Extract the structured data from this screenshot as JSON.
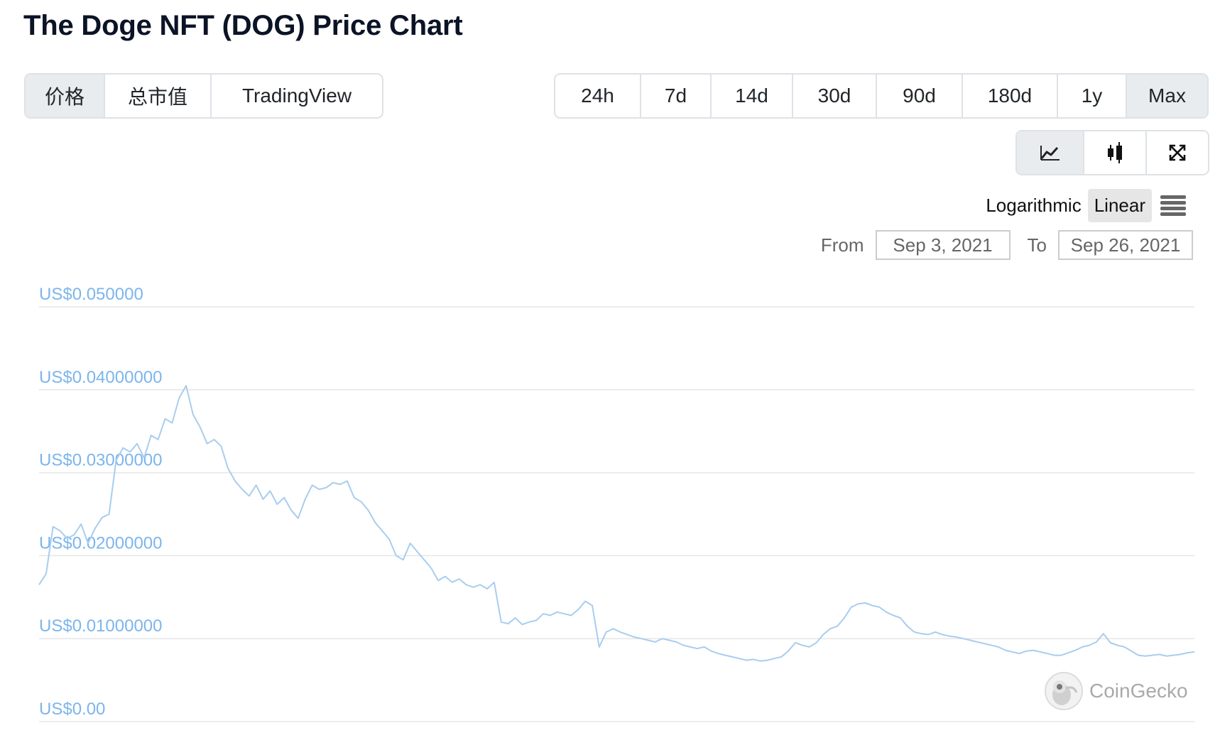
{
  "title": "The Doge NFT (DOG) Price Chart",
  "tabs": [
    "价格",
    "总市值",
    "TradingView"
  ],
  "ranges": [
    "24h",
    "7d",
    "14d",
    "30d",
    "90d",
    "180d",
    "1y",
    "Max"
  ],
  "active_range": "Max",
  "chart_type_icons": [
    "line-chart-icon",
    "candlestick-icon",
    "fullscreen-icon"
  ],
  "scale": {
    "logarithmic": "Logarithmic",
    "linear": "Linear",
    "active": "Linear"
  },
  "range_selector": {
    "from_label": "From",
    "from_value": "Sep 3, 2021",
    "to_label": "To",
    "to_value": "Sep 26, 2021"
  },
  "watermark": "CoinGecko",
  "colors": {
    "line": "#a9cdef",
    "axis_label": "#7cb5ec",
    "grid": "#e6e6e6"
  },
  "chart_data": {
    "type": "line",
    "title": "",
    "xlabel": "",
    "ylabel": "",
    "ylim": [
      0,
      0.05
    ],
    "y_ticks": [
      0,
      0.01,
      0.02,
      0.03,
      0.04,
      0.05
    ],
    "y_tick_labels": [
      "US$0.00",
      "US$0.01000000",
      "US$0.02000000",
      "US$0.03000000",
      "US$0.04000000",
      "US$0.050000"
    ],
    "x_range": [
      "Sep 3, 2021",
      "Sep 26, 2021"
    ],
    "series": [
      {
        "values": [
          0.0165,
          0.0178,
          0.0235,
          0.023,
          0.0221,
          0.0225,
          0.0238,
          0.0215,
          0.0233,
          0.0246,
          0.025,
          0.0315,
          0.033,
          0.0325,
          0.0335,
          0.0318,
          0.0345,
          0.034,
          0.0365,
          0.036,
          0.039,
          0.0405,
          0.037,
          0.0355,
          0.0335,
          0.034,
          0.0332,
          0.0305,
          0.029,
          0.028,
          0.0272,
          0.0285,
          0.0268,
          0.0278,
          0.0262,
          0.027,
          0.0255,
          0.0245,
          0.0268,
          0.0285,
          0.028,
          0.0282,
          0.0288,
          0.0286,
          0.029,
          0.027,
          0.0265,
          0.0255,
          0.024,
          0.023,
          0.022,
          0.02,
          0.0195,
          0.0215,
          0.0205,
          0.0195,
          0.0185,
          0.017,
          0.0175,
          0.0168,
          0.0172,
          0.0165,
          0.0162,
          0.0165,
          0.016,
          0.0168,
          0.012,
          0.0118,
          0.0125,
          0.0117,
          0.012,
          0.0122,
          0.013,
          0.0128,
          0.0132,
          0.013,
          0.0128,
          0.0135,
          0.0145,
          0.014,
          0.009,
          0.0108,
          0.0112,
          0.0108,
          0.0105,
          0.0102,
          0.01,
          0.0098,
          0.0096,
          0.01,
          0.0098,
          0.0096,
          0.0092,
          0.009,
          0.0088,
          0.009,
          0.0085,
          0.0082,
          0.008,
          0.0078,
          0.0076,
          0.0074,
          0.0075,
          0.0073,
          0.0074,
          0.0076,
          0.0078,
          0.0085,
          0.0095,
          0.0092,
          0.009,
          0.0095,
          0.0105,
          0.0112,
          0.0115,
          0.0125,
          0.0138,
          0.0142,
          0.0143,
          0.014,
          0.0138,
          0.0132,
          0.0128,
          0.0125,
          0.0115,
          0.0108,
          0.0106,
          0.0105,
          0.0108,
          0.0105,
          0.0103,
          0.0102,
          0.01,
          0.0098,
          0.0096,
          0.0094,
          0.0092,
          0.009,
          0.0086,
          0.0084,
          0.0082,
          0.0085,
          0.0086,
          0.0084,
          0.0082,
          0.008,
          0.008,
          0.0083,
          0.0086,
          0.009,
          0.0092,
          0.0096,
          0.0106,
          0.0095,
          0.0092,
          0.009,
          0.0085,
          0.008,
          0.0079,
          0.008,
          0.0081,
          0.0079,
          0.008,
          0.0081,
          0.0083,
          0.0084
        ]
      }
    ],
    "grid": true,
    "legend": "none"
  }
}
